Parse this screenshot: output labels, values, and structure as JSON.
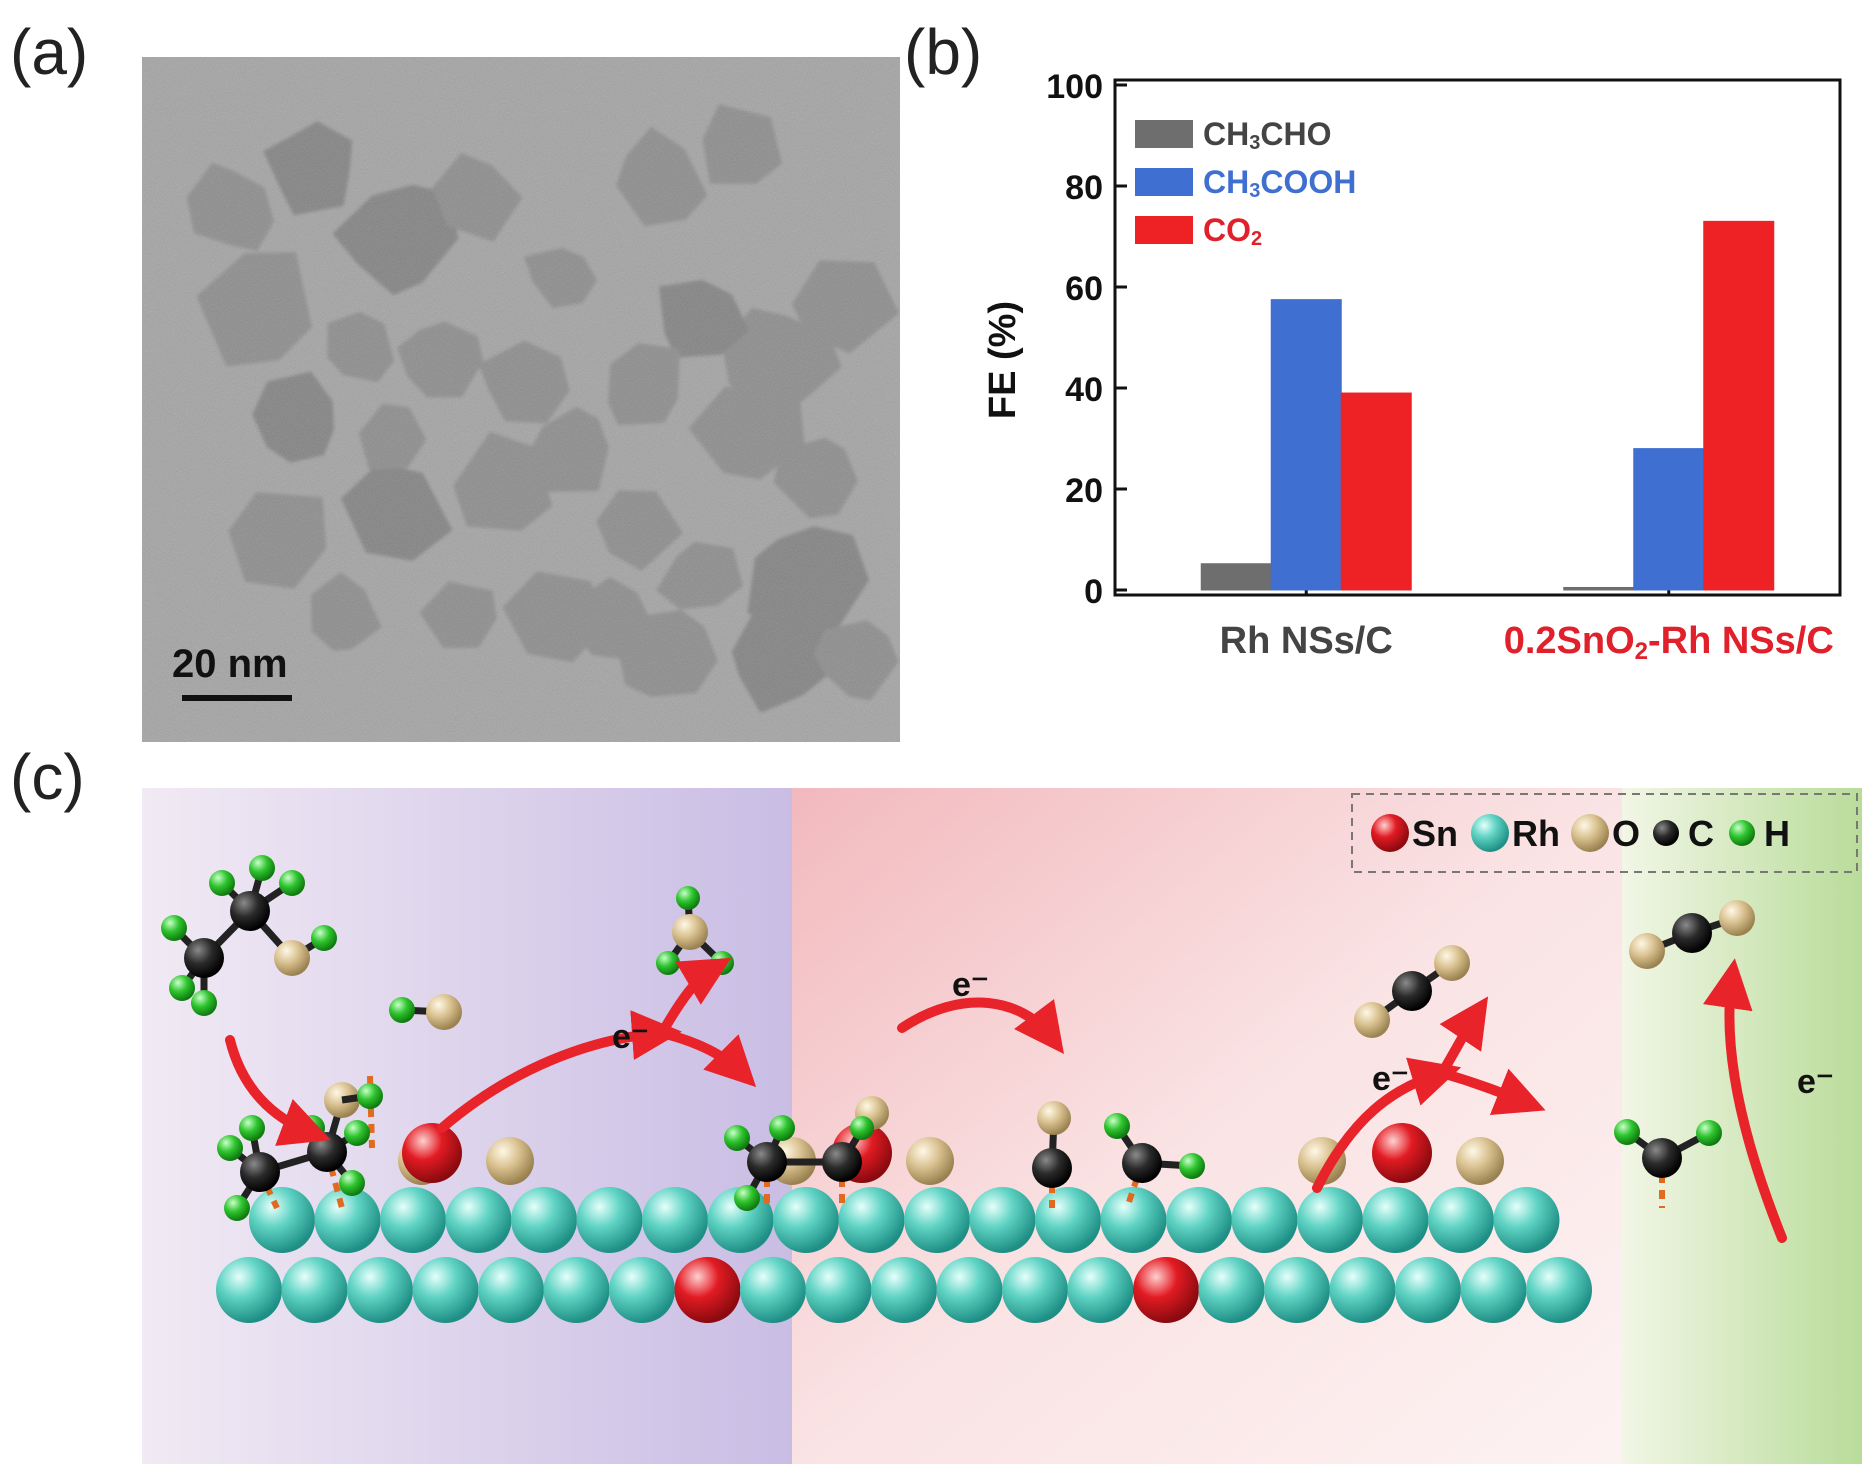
{
  "panels": {
    "a": {
      "label": "(a)",
      "scale_bar": "20 nm"
    },
    "b": {
      "label": "(b)"
    },
    "c": {
      "label": "(c)"
    }
  },
  "chart_data": {
    "type": "bar",
    "categories": [
      "Rh NSs/C",
      "0.2SnO2-Rh NSs/C"
    ],
    "category_colors": [
      "#444444",
      "#e0202a"
    ],
    "series": [
      {
        "name": "CH3CHO",
        "color": "#6e6e6e",
        "values": [
          5.2,
          0.5
        ]
      },
      {
        "name": "CH3COOH",
        "color": "#3f6fd1",
        "values": [
          57.5,
          28
        ]
      },
      {
        "name": "CO2",
        "color": "#ee2225",
        "values": [
          39,
          73
        ]
      }
    ],
    "legend_labels": [
      {
        "pre": "CH",
        "sub1": "3",
        "mid": "CHO",
        "sub2": "",
        "post": "",
        "color": "#444444"
      },
      {
        "pre": "CH",
        "sub1": "3",
        "mid": "COOH",
        "sub2": "",
        "post": "",
        "color": "#3f6fd1"
      },
      {
        "pre": "CO",
        "sub1": "2",
        "mid": "",
        "sub2": "",
        "post": "",
        "color": "#e0202a"
      }
    ],
    "category_label_parts": [
      {
        "pre": "Rh NSs/C",
        "sub": "",
        "post": ""
      },
      {
        "pre": "0.2SnO",
        "sub": "2",
        "post": "-Rh NSs/C"
      }
    ],
    "ylabel": "FE (%)",
    "xlabel": "",
    "ylim": [
      0,
      100
    ],
    "yticks": [
      0,
      20,
      40,
      60,
      80,
      100
    ],
    "legend_position": "top-left",
    "grid": false
  },
  "scheme": {
    "legend": [
      {
        "name": "Sn",
        "color": "#d7141c"
      },
      {
        "name": "Rh",
        "color": "#5fd3c4"
      },
      {
        "name": "O",
        "color": "#d8c08e"
      },
      {
        "name": "C",
        "color": "#2a2a2a"
      },
      {
        "name": "H",
        "color": "#2ec42e"
      }
    ],
    "electron_label": "e⁻"
  }
}
